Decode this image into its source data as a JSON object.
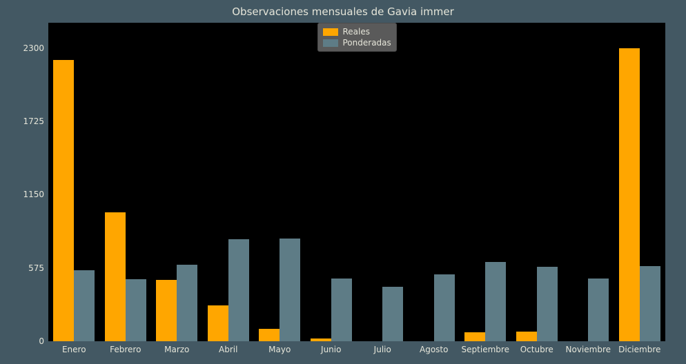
{
  "chart": {
    "type": "bar",
    "title": "Observaciones mensuales de Gavia immer",
    "title_fontsize": 15,
    "background_color": "#435863",
    "plot_background_color": "#000000",
    "text_color": "#e5e5d9",
    "tick_fontsize": 12,
    "categories": [
      "Enero",
      "Febrero",
      "Marzo",
      "Abril",
      "Mayo",
      "Junio",
      "Julio",
      "Agosto",
      "Septiembre",
      "Octubre",
      "Noviembre",
      "Diciembre"
    ],
    "series": [
      {
        "name": "Reales",
        "color": "#ffa600",
        "values": [
          2210,
          1010,
          480,
          280,
          100,
          20,
          0,
          0,
          70,
          75,
          0,
          2300
        ]
      },
      {
        "name": "Ponderadas",
        "color": "#5e7c86",
        "values": [
          555,
          485,
          600,
          800,
          805,
          495,
          430,
          525,
          625,
          585,
          495,
          590
        ]
      }
    ],
    "ylim": [
      0,
      2500
    ],
    "yticks": [
      0,
      575,
      1150,
      1725,
      2300
    ],
    "group_width": 0.8,
    "bar_rel_width": 0.5,
    "legend": {
      "position": "upper center",
      "facecolor": "#5a5a5a",
      "edgecolor": "#4a4a4a"
    }
  }
}
